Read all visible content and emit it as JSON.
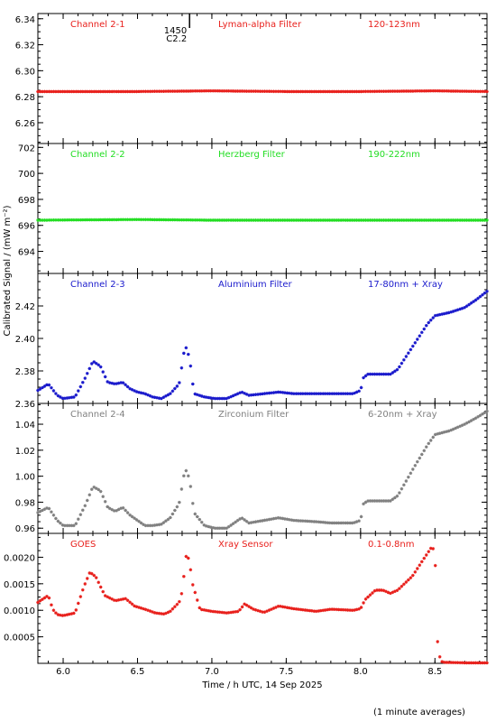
{
  "xaxis": {
    "label": "Time / h UTC, 14 Sep 2025",
    "range": [
      5.83,
      8.85
    ],
    "ticks": [
      "6.0",
      "6.5",
      "7.0",
      "7.5",
      "8.0",
      "8.5"
    ],
    "tick_values": [
      6.0,
      6.5,
      7.0,
      7.5,
      8.0,
      8.5
    ]
  },
  "ylabel": "Calibrated Signal / (mW m⁻²)",
  "footnote": "(1 minute averages)",
  "flare_marker": {
    "time": 6.85,
    "label_top": "1450",
    "label_bottom": "C2.2"
  },
  "chart_data": [
    {
      "type": "scatter",
      "channel": "Channel 2-1",
      "filter": "Lyman-alpha Filter",
      "band": "120-123nm",
      "color": "#e8201c",
      "ylim": [
        6.244,
        6.344
      ],
      "yticks": [
        "6.26",
        "6.28",
        "6.30",
        "6.32",
        "6.34"
      ],
      "ytick_values": [
        6.26,
        6.28,
        6.3,
        6.32,
        6.34
      ],
      "points": [
        [
          5.83,
          6.284
        ],
        [
          6.5,
          6.284
        ],
        [
          7.0,
          6.2845
        ],
        [
          7.5,
          6.284
        ],
        [
          8.0,
          6.284
        ],
        [
          8.5,
          6.2845
        ],
        [
          8.85,
          6.284
        ]
      ]
    },
    {
      "type": "scatter",
      "channel": "Channel 2-2",
      "filter": "Herzberg Filter",
      "band": "190-222nm",
      "color": "#22dd22",
      "ylim": [
        692.3,
        702.3
      ],
      "yticks": [
        "694",
        "696",
        "698",
        "700",
        "702"
      ],
      "ytick_values": [
        694,
        696,
        698,
        700,
        702
      ],
      "points": [
        [
          5.83,
          696.4
        ],
        [
          6.5,
          696.45
        ],
        [
          7.0,
          696.4
        ],
        [
          7.5,
          696.4
        ],
        [
          8.0,
          696.4
        ],
        [
          8.5,
          696.4
        ],
        [
          8.85,
          696.4
        ]
      ]
    },
    {
      "type": "scatter",
      "channel": "Channel 2-3",
      "filter": "Aluminium Filter",
      "band": "17-80nm + Xray",
      "color": "#1a1acc",
      "ylim": [
        2.36,
        2.44
      ],
      "yticks": [
        "2.36",
        "2.38",
        "2.40",
        "2.42"
      ],
      "ytick_values": [
        2.36,
        2.38,
        2.4,
        2.42
      ],
      "points": [
        [
          5.83,
          2.368
        ],
        [
          5.9,
          2.372
        ],
        [
          5.96,
          2.365
        ],
        [
          6.0,
          2.363
        ],
        [
          6.08,
          2.364
        ],
        [
          6.15,
          2.376
        ],
        [
          6.2,
          2.386
        ],
        [
          6.25,
          2.383
        ],
        [
          6.3,
          2.373
        ],
        [
          6.35,
          2.372
        ],
        [
          6.4,
          2.373
        ],
        [
          6.45,
          2.369
        ],
        [
          6.5,
          2.367
        ],
        [
          6.55,
          2.366
        ],
        [
          6.6,
          2.364
        ],
        [
          6.66,
          2.363
        ],
        [
          6.72,
          2.366
        ],
        [
          6.78,
          2.372
        ],
        [
          6.82,
          2.396
        ],
        [
          6.85,
          2.388
        ],
        [
          6.88,
          2.366
        ],
        [
          6.95,
          2.364
        ],
        [
          7.02,
          2.363
        ],
        [
          7.1,
          2.363
        ],
        [
          7.2,
          2.367
        ],
        [
          7.25,
          2.365
        ],
        [
          7.35,
          2.366
        ],
        [
          7.45,
          2.367
        ],
        [
          7.55,
          2.366
        ],
        [
          7.7,
          2.366
        ],
        [
          7.8,
          2.366
        ],
        [
          7.95,
          2.366
        ],
        [
          8.0,
          2.368
        ],
        [
          8.02,
          2.376
        ],
        [
          8.05,
          2.378
        ],
        [
          8.1,
          2.378
        ],
        [
          8.2,
          2.378
        ],
        [
          8.25,
          2.381
        ],
        [
          8.35,
          2.395
        ],
        [
          8.45,
          2.409
        ],
        [
          8.5,
          2.414
        ],
        [
          8.6,
          2.416
        ],
        [
          8.7,
          2.419
        ],
        [
          8.78,
          2.424
        ],
        [
          8.85,
          2.429
        ]
      ]
    },
    {
      "type": "scatter",
      "channel": "Channel 2-4",
      "filter": "Zirconium Filter",
      "band": "6-20nm + Xray",
      "color": "#808080",
      "ylim": [
        0.956,
        1.056
      ],
      "yticks": [
        "0.96",
        "0.98",
        "1.00",
        "1.02",
        "1.04"
      ],
      "ytick_values": [
        0.96,
        0.98,
        1.0,
        1.02,
        1.04
      ],
      "points": [
        [
          5.83,
          0.972
        ],
        [
          5.9,
          0.976
        ],
        [
          5.96,
          0.966
        ],
        [
          6.0,
          0.962
        ],
        [
          6.08,
          0.962
        ],
        [
          6.15,
          0.978
        ],
        [
          6.2,
          0.992
        ],
        [
          6.25,
          0.989
        ],
        [
          6.3,
          0.976
        ],
        [
          6.35,
          0.973
        ],
        [
          6.4,
          0.976
        ],
        [
          6.45,
          0.97
        ],
        [
          6.5,
          0.966
        ],
        [
          6.55,
          0.962
        ],
        [
          6.6,
          0.962
        ],
        [
          6.66,
          0.963
        ],
        [
          6.72,
          0.968
        ],
        [
          6.78,
          0.979
        ],
        [
          6.82,
          1.006
        ],
        [
          6.85,
          0.998
        ],
        [
          6.88,
          0.972
        ],
        [
          6.95,
          0.962
        ],
        [
          7.02,
          0.96
        ],
        [
          7.1,
          0.96
        ],
        [
          7.2,
          0.968
        ],
        [
          7.25,
          0.964
        ],
        [
          7.35,
          0.966
        ],
        [
          7.45,
          0.968
        ],
        [
          7.55,
          0.966
        ],
        [
          7.7,
          0.965
        ],
        [
          7.8,
          0.964
        ],
        [
          7.95,
          0.964
        ],
        [
          8.0,
          0.966
        ],
        [
          8.02,
          0.979
        ],
        [
          8.05,
          0.981
        ],
        [
          8.1,
          0.981
        ],
        [
          8.2,
          0.981
        ],
        [
          8.25,
          0.985
        ],
        [
          8.35,
          1.005
        ],
        [
          8.45,
          1.024
        ],
        [
          8.5,
          1.032
        ],
        [
          8.6,
          1.035
        ],
        [
          8.7,
          1.04
        ],
        [
          8.78,
          1.045
        ],
        [
          8.85,
          1.05
        ]
      ]
    },
    {
      "type": "scatter",
      "channel": "GOES",
      "filter": "Xray Sensor",
      "band": "0.1-0.8nm",
      "color": "#e8201c",
      "ylim": [
        0.0,
        0.00245
      ],
      "yticks": [
        "0.0005",
        "0.0010",
        "0.0015",
        "0.0020"
      ],
      "ytick_values": [
        0.0005,
        0.001,
        0.0015,
        0.002
      ],
      "points": [
        [
          5.83,
          0.00115
        ],
        [
          5.9,
          0.00128
        ],
        [
          5.93,
          0.00102
        ],
        [
          5.96,
          0.00092
        ],
        [
          6.0,
          0.0009
        ],
        [
          6.08,
          0.00095
        ],
        [
          6.14,
          0.00145
        ],
        [
          6.18,
          0.00172
        ],
        [
          6.22,
          0.00163
        ],
        [
          6.28,
          0.00128
        ],
        [
          6.35,
          0.00118
        ],
        [
          6.42,
          0.00122
        ],
        [
          6.48,
          0.00108
        ],
        [
          6.55,
          0.00102
        ],
        [
          6.62,
          0.00095
        ],
        [
          6.68,
          0.00093
        ],
        [
          6.72,
          0.00098
        ],
        [
          6.78,
          0.00115
        ],
        [
          6.8,
          0.00135
        ],
        [
          6.83,
          0.0021
        ],
        [
          6.85,
          0.0019
        ],
        [
          6.87,
          0.0015
        ],
        [
          6.92,
          0.00102
        ],
        [
          7.0,
          0.00098
        ],
        [
          7.1,
          0.00095
        ],
        [
          7.18,
          0.00098
        ],
        [
          7.22,
          0.00112
        ],
        [
          7.28,
          0.00102
        ],
        [
          7.35,
          0.00096
        ],
        [
          7.45,
          0.00108
        ],
        [
          7.55,
          0.00103
        ],
        [
          7.7,
          0.00098
        ],
        [
          7.8,
          0.00102
        ],
        [
          7.95,
          0.001
        ],
        [
          8.0,
          0.00103
        ],
        [
          8.03,
          0.0012
        ],
        [
          8.1,
          0.00138
        ],
        [
          8.15,
          0.00138
        ],
        [
          8.2,
          0.00132
        ],
        [
          8.25,
          0.00138
        ],
        [
          8.35,
          0.00165
        ],
        [
          8.42,
          0.00195
        ],
        [
          8.48,
          0.0022
        ],
        [
          8.5,
          0.0021
        ],
        [
          8.52,
          0.0002
        ],
        [
          8.55,
          2e-05
        ],
        [
          8.7,
          1e-05
        ],
        [
          8.85,
          1e-05
        ]
      ]
    }
  ]
}
